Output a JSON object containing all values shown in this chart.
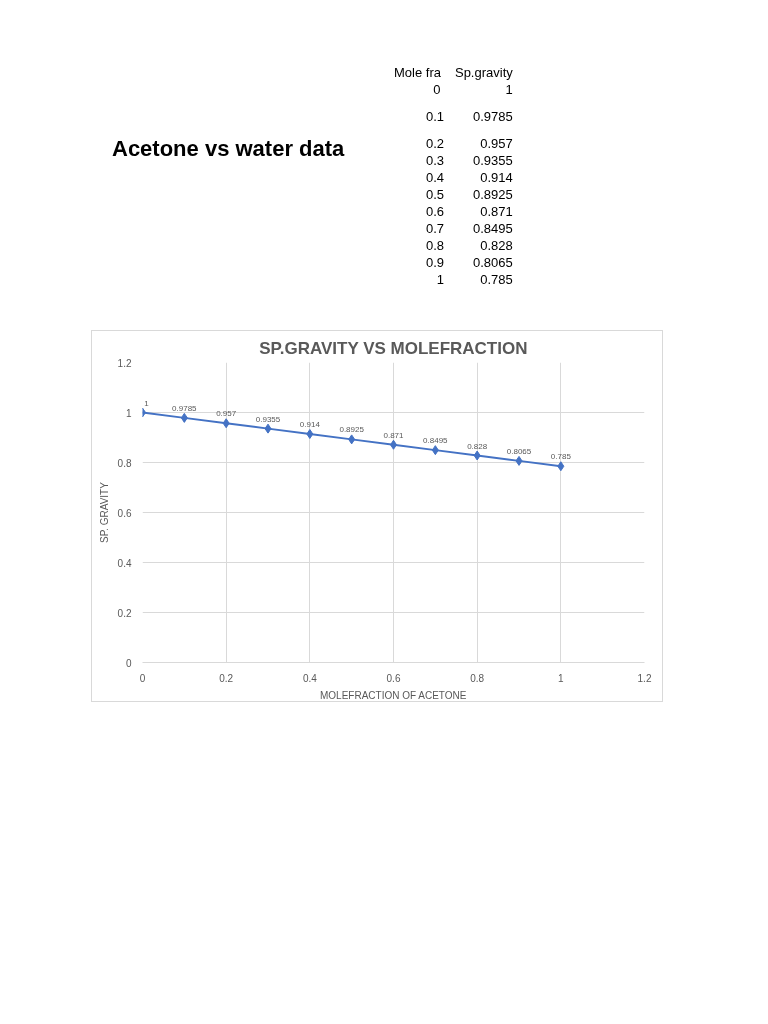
{
  "chart_data": [
    {
      "type": "other",
      "title": "Acetone vs water data",
      "categories": [
        "Mole fra",
        "Sp.gravity"
      ],
      "cells": [
        [
          "0 1"
        ],
        [
          "0.1 0.9785"
        ],
        [
          "0.2 0.957"
        ],
        [
          "0.3 0.9355"
        ],
        [
          "0.4 0.914"
        ],
        [
          "0.5 0.8925"
        ],
        [
          "0.6 0.871"
        ],
        [
          "0.7 0.8495"
        ],
        [
          "0.8 0.828"
        ],
        [
          "0.9 0.8065"
        ],
        [
          "1 0.785"
        ]
      ]
    },
    {
      "type": "line",
      "title": "SP.GRAVITY VS MOLEFRACTION",
      "xlabel": "MOLEFRACTION OF ACETONE",
      "ylabel": "SP. GRAVITY",
      "x": [
        0,
        0.1,
        0.2,
        0.3,
        0.4,
        0.5,
        0.6,
        0.7,
        0.8,
        0.9,
        1
      ],
      "values": [
        1,
        0.9785,
        0.957,
        0.9355,
        0.914,
        0.8925,
        0.871,
        0.8495,
        0.828,
        0.8065,
        0.785
      ],
      "color": "#4472c4",
      "marker": "diamond",
      "line_style": "solid",
      "data_labels": true,
      "grid": true,
      "xlim": [
        0,
        1.2
      ],
      "ylim": [
        0,
        1.2
      ],
      "xticks": [
        0,
        0.2,
        0.4,
        0.6,
        0.8,
        1,
        1.2
      ],
      "yticks": [
        0,
        0.2,
        0.4,
        0.6,
        0.8,
        1,
        1.2
      ]
    }
  ]
}
